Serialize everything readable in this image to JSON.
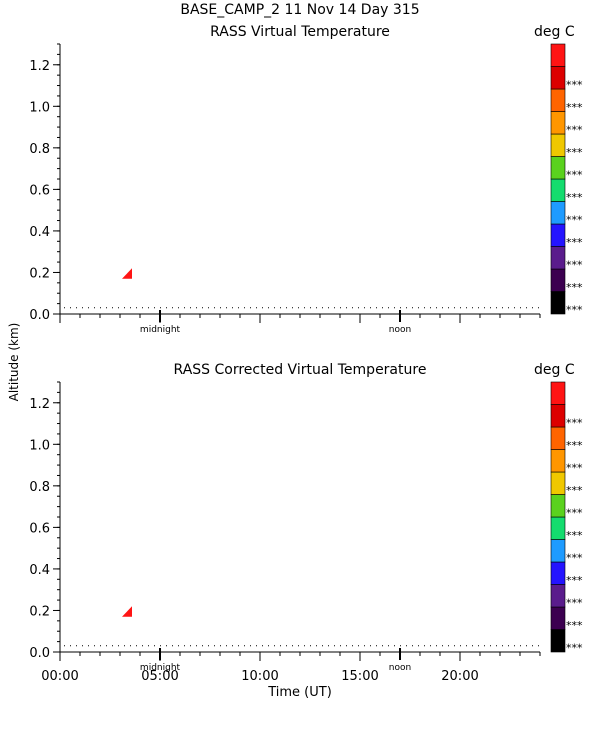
{
  "header": {
    "site_title": "BASE_CAMP_2  11 Nov 14 Day 315",
    "units_label": "deg C",
    "ylabel": "Altitude (km)",
    "xlabel": "Time (UT)"
  },
  "colorbar": {
    "colors": [
      "#000000",
      "#3c0050",
      "#5a1c8c",
      "#2414ff",
      "#1e9bff",
      "#14dc6e",
      "#5ad21e",
      "#f0c800",
      "#ff9600",
      "#ff6400",
      "#dc0000",
      "#ff1414"
    ],
    "labels": [
      "***",
      "***",
      "***",
      "***",
      "***",
      "***",
      "***",
      "***",
      "***",
      "***",
      "***"
    ]
  },
  "chart_data": [
    {
      "type": "heatmap",
      "title": "RASS Virtual Temperature",
      "units": "deg C",
      "ylabel": "Altitude (km)",
      "ylim": [
        0.0,
        1.3
      ],
      "yticks": [
        "0.0",
        "0.2",
        "0.4",
        "0.6",
        "0.8",
        "1.0",
        "1.2"
      ],
      "xlim": [
        0,
        24
      ],
      "markers": [
        {
          "label": "midnight",
          "x": 5.0
        },
        {
          "label": "noon",
          "x": 17.0
        }
      ],
      "reference_line_altitude": 0.03,
      "cells": [
        {
          "time_start": 3.1,
          "time_end": 3.6,
          "alt_start": 0.17,
          "alt_end": 0.22,
          "color": "#ff1414"
        }
      ]
    },
    {
      "type": "heatmap",
      "title": "RASS Corrected Virtual Temperature",
      "units": "deg C",
      "ylabel": "Altitude (km)",
      "xlabel": "Time (UT)",
      "ylim": [
        0.0,
        1.3
      ],
      "yticks": [
        "0.0",
        "0.2",
        "0.4",
        "0.6",
        "0.8",
        "1.0",
        "1.2"
      ],
      "xlim": [
        0,
        24
      ],
      "xticks": [
        "00:00",
        "05:00",
        "10:00",
        "15:00",
        "20:00"
      ],
      "markers": [
        {
          "label": "midnight",
          "x": 5.0
        },
        {
          "label": "noon",
          "x": 17.0
        }
      ],
      "reference_line_altitude": 0.03,
      "cells": [
        {
          "time_start": 3.1,
          "time_end": 3.6,
          "alt_start": 0.17,
          "alt_end": 0.22,
          "color": "#ff1414"
        }
      ]
    }
  ]
}
